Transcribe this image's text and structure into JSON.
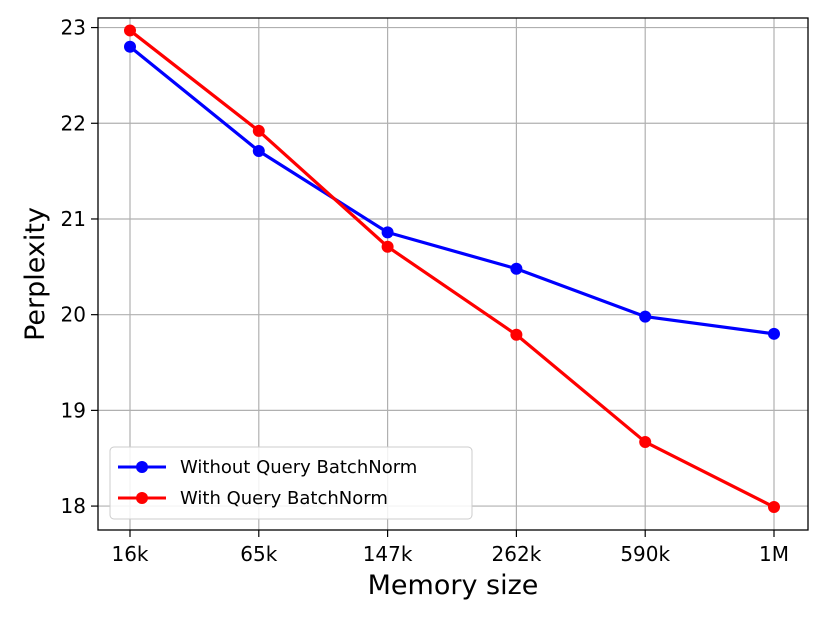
{
  "chart_data": {
    "type": "line",
    "title": "",
    "xlabel": "Memory size",
    "ylabel": "Perplexity",
    "categories": [
      "16k",
      "65k",
      "147k",
      "262k",
      "590k",
      "1M"
    ],
    "ylim": [
      17.75,
      23.1
    ],
    "yticks": [
      18,
      19,
      20,
      21,
      22,
      23
    ],
    "grid": true,
    "legend_position": "lower-left",
    "series": [
      {
        "name": "Without Query BatchNorm",
        "color": "#0000ff",
        "marker": "circle",
        "values": [
          22.8,
          21.71,
          20.86,
          20.48,
          19.98,
          19.8
        ]
      },
      {
        "name": "With Query BatchNorm",
        "color": "#ff0000",
        "marker": "circle",
        "values": [
          22.97,
          21.92,
          20.71,
          19.79,
          18.67,
          17.99
        ]
      }
    ]
  }
}
